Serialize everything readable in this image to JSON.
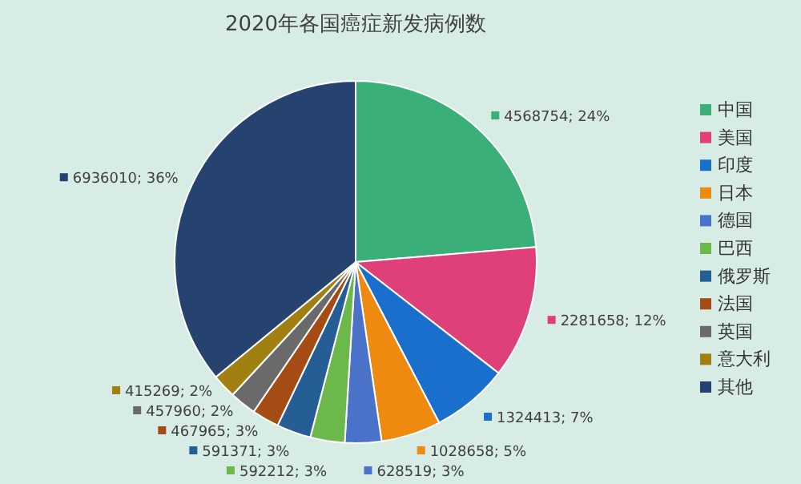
{
  "chart_data": {
    "type": "pie",
    "title": "2020年各国癌症新发病例数",
    "categories": [
      "中国",
      "美国",
      "印度",
      "日本",
      "德国",
      "巴西",
      "俄罗斯",
      "法国",
      "英国",
      "意大利",
      "其他"
    ],
    "values": [
      4568754,
      2281658,
      1324413,
      1028658,
      628519,
      592212,
      591371,
      467965,
      457960,
      415269,
      6936010
    ],
    "colors": [
      "#3aaf78",
      "#e0407a",
      "#1a6fcc",
      "#ee8a10",
      "#4a72c8",
      "#6cb84a",
      "#255e94",
      "#a44c14",
      "#6a6a6a",
      "#a08010",
      "#26426f"
    ],
    "value_labels": [
      "4568754; 24%",
      "2281658; 12%",
      "1324413; 7%",
      "1028658; 5%",
      "628519; 3%",
      "592212; 3%",
      "591371; 3%",
      "467965; 3%",
      "457960; 2%",
      "415269; 2%",
      "6936010; 36%"
    ],
    "legend": "right"
  }
}
